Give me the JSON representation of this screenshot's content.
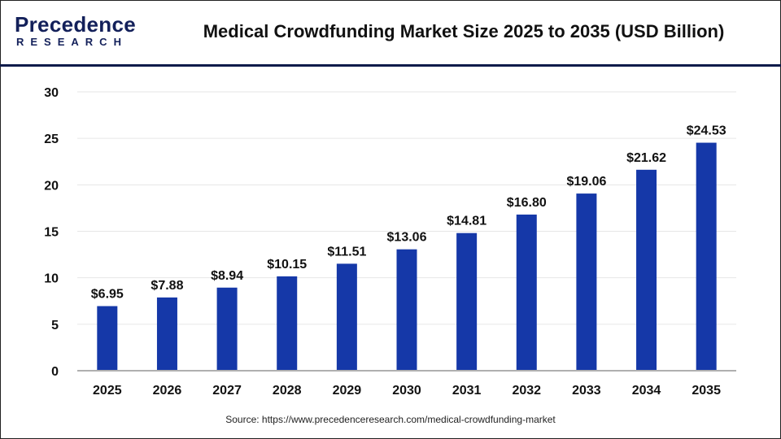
{
  "logo": {
    "line1": "Precedence",
    "line2": "RESEARCH"
  },
  "title": "Medical Crowdfunding Market Size 2025 to 2035 (USD Billion)",
  "source": "Source: https://www.precedenceresearch.com/medical-crowdfunding-market",
  "colors": {
    "bar": "#1538a8",
    "header_line": "#0d1a4a"
  },
  "chart_data": {
    "type": "bar",
    "title": "Medical Crowdfunding Market Size 2025 to 2035 (USD Billion)",
    "categories": [
      "2025",
      "2026",
      "2027",
      "2028",
      "2029",
      "2030",
      "2031",
      "2032",
      "2033",
      "2034",
      "2035"
    ],
    "values": [
      6.95,
      7.88,
      8.94,
      10.15,
      11.51,
      13.06,
      14.81,
      16.8,
      19.06,
      21.62,
      24.53
    ],
    "data_labels": [
      "$6.95",
      "$7.88",
      "$8.94",
      "$10.15",
      "$11.51",
      "$13.06",
      "$14.81",
      "$16.80",
      "$19.06",
      "$21.62",
      "$24.53"
    ],
    "ylim": [
      0,
      30
    ],
    "yticks": [
      "0",
      "5",
      "10",
      "15",
      "20",
      "25",
      "30"
    ],
    "grid": true,
    "xlabel": "",
    "ylabel": ""
  }
}
